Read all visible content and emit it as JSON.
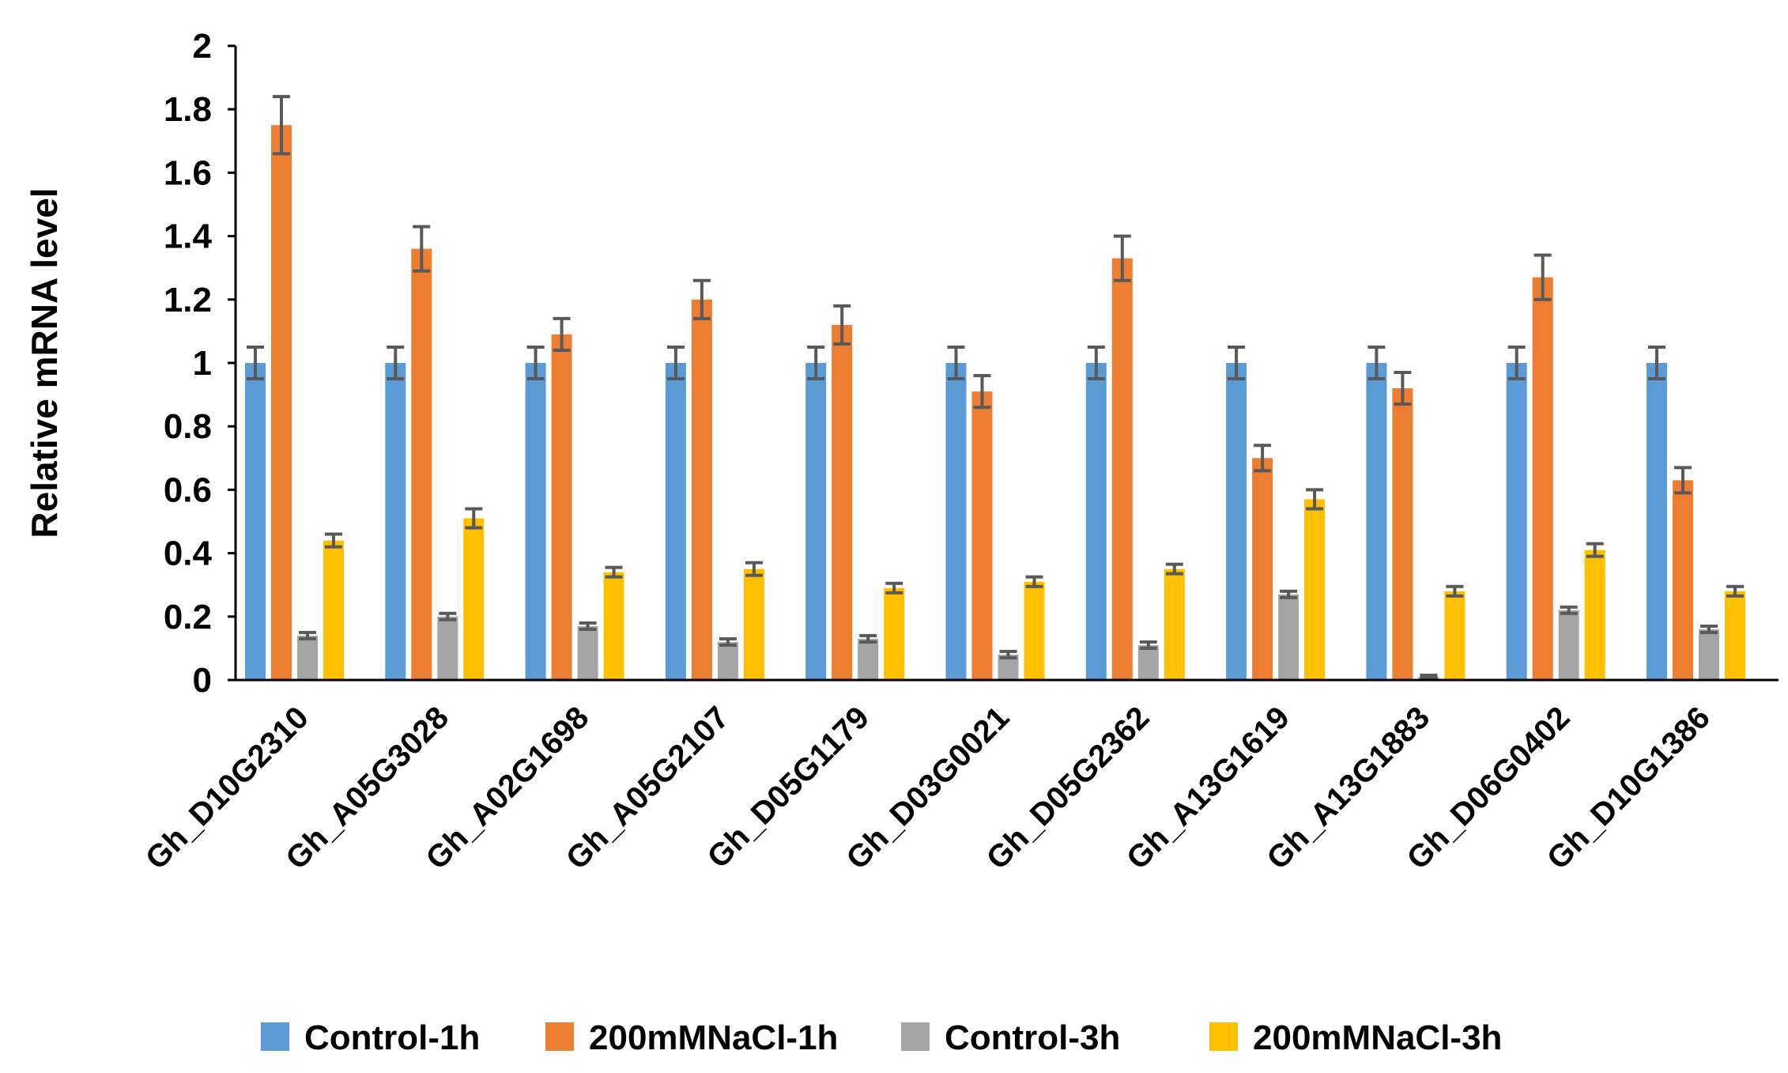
{
  "chart_data": {
    "type": "bar",
    "title": "",
    "xlabel": "",
    "ylabel": "Relative mRNA level",
    "ylim": [
      0,
      2
    ],
    "yticks": [
      "0",
      "0.2",
      "0.4",
      "0.6",
      "0.8",
      "1",
      "1.2",
      "1.4",
      "1.6",
      "1.8",
      "2"
    ],
    "grid": false,
    "legend_position": "bottom",
    "categories": [
      "Gh_D10G2310",
      "Gh_A05G3028",
      "Gh_A02G1698",
      "Gh_A05G2107",
      "Gh_D05G1179",
      "Gh_D03G0021",
      "Gh_D05G2362",
      "Gh_A13G1619",
      "Gh_A13G1883",
      "Gh_D06G0402",
      "Gh_D10G1386"
    ],
    "series": [
      {
        "name": "Control-1h",
        "color": "#5B9BD5",
        "values": [
          1.0,
          1.0,
          1.0,
          1.0,
          1.0,
          1.0,
          1.0,
          1.0,
          1.0,
          1.0,
          1.0
        ],
        "errors": [
          0.05,
          0.05,
          0.05,
          0.05,
          0.05,
          0.05,
          0.05,
          0.05,
          0.05,
          0.05,
          0.05
        ]
      },
      {
        "name": "200mMNaCl-1h",
        "color": "#ED7D31",
        "values": [
          1.75,
          1.36,
          1.09,
          1.2,
          1.12,
          0.91,
          1.33,
          0.7,
          0.92,
          1.27,
          0.63
        ],
        "errors": [
          0.09,
          0.07,
          0.05,
          0.06,
          0.06,
          0.05,
          0.07,
          0.04,
          0.05,
          0.07,
          0.04
        ]
      },
      {
        "name": "Control-3h",
        "color": "#A5A5A5",
        "values": [
          0.14,
          0.2,
          0.17,
          0.12,
          0.13,
          0.08,
          0.11,
          0.27,
          0.01,
          0.22,
          0.16
        ],
        "errors": [
          0.01,
          0.01,
          0.01,
          0.01,
          0.01,
          0.01,
          0.01,
          0.01,
          0.005,
          0.01,
          0.01
        ]
      },
      {
        "name": "200mMNaCl-3h",
        "color": "#FFC000",
        "values": [
          0.44,
          0.51,
          0.34,
          0.35,
          0.29,
          0.31,
          0.35,
          0.57,
          0.28,
          0.41,
          0.28
        ],
        "errors": [
          0.02,
          0.03,
          0.015,
          0.02,
          0.015,
          0.015,
          0.015,
          0.03,
          0.015,
          0.02,
          0.015
        ]
      }
    ]
  }
}
